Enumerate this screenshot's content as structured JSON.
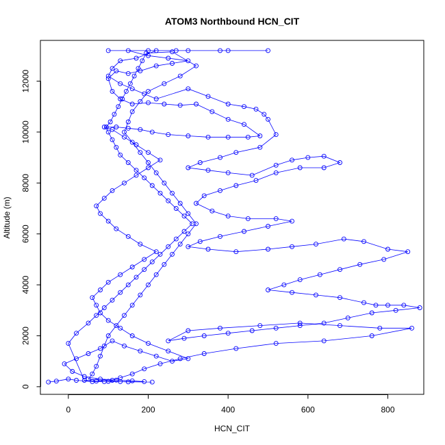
{
  "chart_data": {
    "type": "scatter",
    "title": "ATOM3 Northbound HCN_CIT",
    "xlabel": "HCN_CIT",
    "ylabel": "Altitude (m)",
    "xlim": [
      -70,
      890
    ],
    "ylim": [
      -300,
      13600
    ],
    "x_ticks": [
      0,
      200,
      400,
      600,
      800
    ],
    "y_ticks": [
      0,
      2000,
      4000,
      6000,
      8000,
      10000,
      12000
    ],
    "x_tick_labels": [
      "0",
      "200",
      "400",
      "600",
      "800"
    ],
    "y_tick_labels": [
      "0",
      "2000",
      "4000",
      "6000",
      "8000",
      "10000",
      "12000"
    ],
    "marker": "open-circle",
    "connected_by_lines": true,
    "grid": false,
    "legend": "none",
    "series_color": "#0000ff",
    "series": [
      {
        "values": [
          [
            -50,
            180
          ],
          [
            -30,
            220
          ],
          [
            0,
            300
          ],
          [
            20,
            250
          ],
          [
            60,
            200
          ],
          [
            100,
            210
          ],
          [
            150,
            190
          ],
          [
            190,
            200
          ],
          [
            160,
            230
          ],
          [
            120,
            260
          ],
          [
            80,
            300
          ],
          [
            40,
            400
          ],
          [
            10,
            600
          ],
          [
            -10,
            900
          ],
          [
            20,
            1100
          ],
          [
            50,
            1300
          ],
          [
            80,
            1500
          ],
          [
            110,
            1800
          ],
          [
            140,
            1600
          ],
          [
            180,
            1400
          ],
          [
            220,
            1200
          ],
          [
            260,
            1000
          ],
          [
            300,
            1100
          ],
          [
            250,
            1400
          ],
          [
            200,
            1700
          ],
          [
            160,
            2000
          ],
          [
            130,
            2300
          ],
          [
            100,
            2600
          ],
          [
            80,
            2900
          ],
          [
            70,
            3200
          ],
          [
            60,
            3500
          ],
          [
            80,
            3800
          ],
          [
            100,
            4100
          ],
          [
            130,
            4400
          ],
          [
            160,
            4700
          ],
          [
            190,
            5000
          ],
          [
            220,
            5300
          ],
          [
            180,
            5600
          ],
          [
            150,
            5900
          ],
          [
            120,
            6200
          ],
          [
            100,
            6500
          ],
          [
            80,
            6800
          ],
          [
            70,
            7100
          ],
          [
            90,
            7400
          ],
          [
            110,
            7700
          ],
          [
            140,
            8000
          ],
          [
            170,
            8300
          ],
          [
            200,
            8600
          ],
          [
            230,
            8900
          ],
          [
            200,
            9200
          ],
          [
            170,
            9500
          ],
          [
            140,
            9800
          ],
          [
            110,
            10100
          ],
          [
            90,
            10200
          ],
          [
            120,
            10200
          ],
          [
            150,
            10150
          ],
          [
            180,
            10100
          ],
          [
            210,
            10000
          ],
          [
            250,
            9900
          ],
          [
            300,
            9850
          ],
          [
            350,
            9800
          ],
          [
            400,
            9800
          ],
          [
            450,
            9800
          ],
          [
            480,
            9850
          ],
          [
            440,
            10300
          ],
          [
            400,
            10500
          ],
          [
            360,
            10800
          ],
          [
            320,
            11100
          ],
          [
            280,
            11050
          ],
          [
            240,
            11100
          ],
          [
            200,
            11150
          ],
          [
            160,
            11100
          ],
          [
            130,
            11300
          ],
          [
            110,
            11600
          ],
          [
            100,
            12100
          ],
          [
            120,
            12400
          ],
          [
            150,
            12300
          ],
          [
            180,
            12400
          ],
          [
            220,
            12600
          ],
          [
            260,
            12700
          ],
          [
            300,
            12800
          ],
          [
            250,
            12900
          ],
          [
            200,
            13000
          ],
          [
            150,
            13200
          ],
          [
            100,
            13200
          ],
          [
            200,
            13200
          ],
          [
            300,
            13200
          ],
          [
            400,
            13200
          ],
          [
            500,
            13200
          ],
          [
            380,
            13200
          ],
          [
            270,
            13200
          ],
          [
            220,
            13200
          ],
          [
            170,
            12900
          ],
          [
            130,
            12800
          ],
          [
            110,
            12500
          ],
          [
            100,
            12200
          ],
          [
            130,
            11900
          ],
          [
            160,
            11700
          ],
          [
            190,
            11500
          ],
          [
            220,
            11300
          ],
          [
            300,
            11700
          ],
          [
            350,
            11400
          ],
          [
            400,
            11100
          ],
          [
            440,
            11000
          ],
          [
            470,
            10900
          ],
          [
            490,
            10700
          ],
          [
            500,
            10500
          ],
          [
            520,
            9900
          ],
          [
            480,
            9400
          ],
          [
            420,
            9200
          ],
          [
            380,
            9000
          ],
          [
            330,
            8800
          ],
          [
            300,
            8600
          ],
          [
            350,
            8500
          ],
          [
            400,
            8400
          ],
          [
            460,
            8300
          ],
          [
            520,
            8700
          ],
          [
            560,
            8900
          ],
          [
            600,
            9000
          ],
          [
            640,
            9050
          ],
          [
            680,
            8800
          ],
          [
            640,
            8600
          ],
          [
            580,
            8600
          ],
          [
            520,
            8400
          ],
          [
            470,
            8100
          ],
          [
            420,
            7900
          ],
          [
            380,
            7700
          ],
          [
            340,
            7500
          ],
          [
            320,
            7200
          ],
          [
            360,
            6900
          ],
          [
            400,
            6700
          ],
          [
            450,
            6600
          ],
          [
            520,
            6600
          ],
          [
            560,
            6500
          ],
          [
            500,
            6300
          ],
          [
            440,
            6100
          ],
          [
            380,
            5900
          ],
          [
            330,
            5700
          ],
          [
            300,
            5500
          ],
          [
            350,
            5400
          ],
          [
            420,
            5300
          ],
          [
            500,
            5400
          ],
          [
            560,
            5500
          ],
          [
            620,
            5600
          ],
          [
            690,
            5800
          ],
          [
            740,
            5700
          ],
          [
            800,
            5400
          ],
          [
            850,
            5300
          ],
          [
            790,
            5000
          ],
          [
            730,
            4800
          ],
          [
            680,
            4600
          ],
          [
            630,
            4400
          ],
          [
            580,
            4200
          ],
          [
            540,
            4000
          ],
          [
            500,
            3800
          ],
          [
            560,
            3700
          ],
          [
            620,
            3600
          ],
          [
            680,
            3500
          ],
          [
            740,
            3300
          ],
          [
            770,
            3200
          ],
          [
            800,
            3200
          ],
          [
            840,
            3200
          ],
          [
            880,
            3100
          ],
          [
            820,
            3000
          ],
          [
            760,
            2900
          ],
          [
            700,
            2700
          ],
          [
            640,
            2500
          ],
          [
            580,
            2400
          ],
          [
            520,
            2300
          ],
          [
            460,
            2200
          ],
          [
            400,
            2100
          ],
          [
            340,
            2000
          ],
          [
            290,
            1900
          ],
          [
            250,
            1800
          ],
          [
            300,
            2200
          ],
          [
            380,
            2300
          ],
          [
            480,
            2400
          ],
          [
            580,
            2500
          ],
          [
            680,
            2400
          ],
          [
            780,
            2300
          ],
          [
            860,
            2300
          ],
          [
            760,
            2000
          ],
          [
            640,
            1800
          ],
          [
            520,
            1700
          ],
          [
            420,
            1500
          ],
          [
            340,
            1300
          ],
          [
            280,
            1100
          ],
          [
            230,
            900
          ],
          [
            190,
            700
          ],
          [
            160,
            500
          ],
          [
            130,
            350
          ],
          [
            110,
            250
          ],
          [
            90,
            200
          ],
          [
            70,
            220
          ],
          [
            40,
            250
          ],
          [
            0,
            1700
          ],
          [
            20,
            2100
          ],
          [
            50,
            2500
          ],
          [
            70,
            2800
          ],
          [
            90,
            3100
          ],
          [
            110,
            3400
          ],
          [
            130,
            3700
          ],
          [
            150,
            4000
          ],
          [
            170,
            4300
          ],
          [
            190,
            4600
          ],
          [
            210,
            4900
          ],
          [
            230,
            5200
          ],
          [
            250,
            5500
          ],
          [
            270,
            5800
          ],
          [
            290,
            6100
          ],
          [
            310,
            6400
          ],
          [
            290,
            6700
          ],
          [
            270,
            7000
          ],
          [
            250,
            7300
          ],
          [
            230,
            7600
          ],
          [
            210,
            7900
          ],
          [
            190,
            8200
          ],
          [
            170,
            8500
          ],
          [
            150,
            8800
          ],
          [
            130,
            9100
          ],
          [
            120,
            9400
          ],
          [
            110,
            9700
          ],
          [
            100,
            10000
          ],
          [
            95,
            10200
          ],
          [
            105,
            10400
          ],
          [
            115,
            10700
          ],
          [
            125,
            11000
          ],
          [
            135,
            11300
          ],
          [
            145,
            11600
          ],
          [
            155,
            11900
          ],
          [
            165,
            12200
          ],
          [
            175,
            12500
          ],
          [
            185,
            12800
          ],
          [
            195,
            13100
          ],
          [
            260,
            13150
          ],
          [
            320,
            12600
          ],
          [
            280,
            12200
          ],
          [
            240,
            11900
          ],
          [
            200,
            11600
          ],
          [
            180,
            11200
          ],
          [
            160,
            10800
          ],
          [
            150,
            10400
          ],
          [
            140,
            10000
          ],
          [
            160,
            9600
          ],
          [
            180,
            9200
          ],
          [
            200,
            8800
          ],
          [
            220,
            8400
          ],
          [
            240,
            8000
          ],
          [
            260,
            7600
          ],
          [
            280,
            7200
          ],
          [
            300,
            6800
          ],
          [
            320,
            6400
          ],
          [
            300,
            6000
          ],
          [
            280,
            5600
          ],
          [
            260,
            5200
          ],
          [
            240,
            4800
          ],
          [
            220,
            4400
          ],
          [
            200,
            4000
          ],
          [
            180,
            3600
          ],
          [
            160,
            3200
          ],
          [
            140,
            2800
          ],
          [
            120,
            2400
          ],
          [
            100,
            2000
          ],
          [
            90,
            1600
          ],
          [
            80,
            1200
          ],
          [
            70,
            800
          ],
          [
            60,
            500
          ],
          [
            50,
            300
          ],
          [
            130,
            200
          ],
          [
            210,
            180
          ]
        ]
      }
    ]
  }
}
